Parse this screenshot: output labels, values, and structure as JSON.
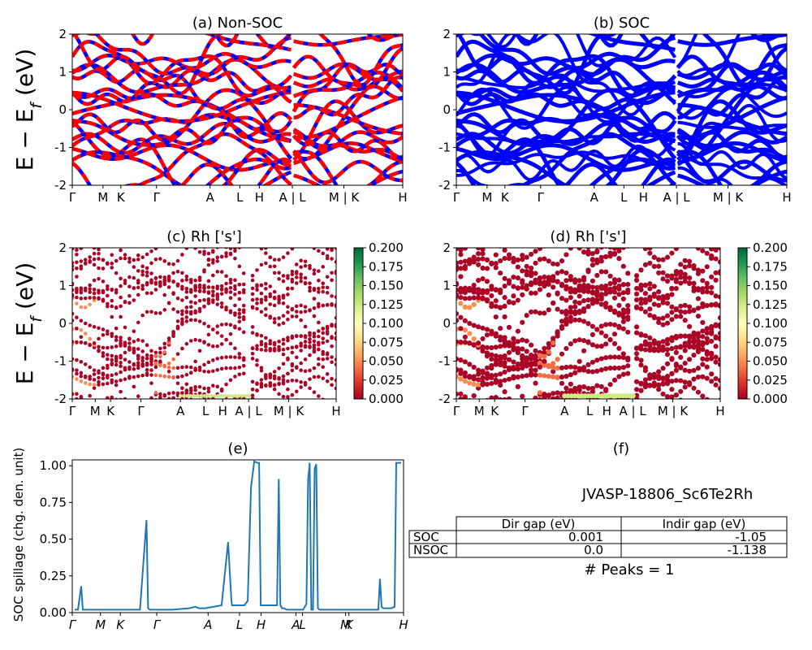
{
  "chart_data": [
    {
      "id": "a",
      "type": "line",
      "title": "(a) Non-SOC",
      "ylabel": "E − E_f (eV)",
      "ylim": [
        -2,
        2
      ],
      "yticks": [
        "-2",
        "-1",
        "0",
        "1",
        "2"
      ],
      "kpath": [
        "Γ",
        "M",
        "K",
        "Γ",
        "A",
        "L",
        "H",
        "A | L",
        "M | K",
        "H"
      ],
      "colors": {
        "primary": "#ff0000",
        "secondary": "#0000ff"
      }
    },
    {
      "id": "b",
      "type": "line",
      "title": "(b) SOC",
      "ylim": [
        -2,
        2
      ],
      "yticks": [
        "-2",
        "-1",
        "0",
        "1",
        "2"
      ],
      "kpath": [
        "Γ",
        "M",
        "K",
        "Γ",
        "A",
        "L",
        "H",
        "A | L",
        "M | K",
        "H"
      ],
      "colors": {
        "primary": "#0000ff"
      }
    },
    {
      "id": "c",
      "type": "scatter",
      "title": "(c)  Rh ['s']",
      "ylabel": "E − E_f (eV)",
      "ylim": [
        -2,
        2
      ],
      "yticks": [
        "-2",
        "-1",
        "0",
        "1",
        "2"
      ],
      "kpath": [
        "Γ",
        "M",
        "K",
        "Γ",
        "A",
        "L",
        "H",
        "A | L",
        "M | K",
        "H"
      ],
      "colorbar": {
        "ticks": [
          "0.000",
          "0.025",
          "0.050",
          "0.075",
          "0.100",
          "0.125",
          "0.150",
          "0.175",
          "0.200"
        ],
        "range": [
          0,
          0.2
        ],
        "cmap": "RdYlGn"
      }
    },
    {
      "id": "d",
      "type": "scatter",
      "title": "(d) Rh ['s']",
      "ylim": [
        -2,
        2
      ],
      "yticks": [
        "-2",
        "-1",
        "0",
        "1",
        "2"
      ],
      "kpath": [
        "Γ",
        "M",
        "K",
        "Γ",
        "A",
        "L",
        "H",
        "A | L",
        "M | K",
        "H"
      ],
      "colorbar": {
        "ticks": [
          "0.000",
          "0.025",
          "0.050",
          "0.075",
          "0.100",
          "0.125",
          "0.150",
          "0.175",
          "0.200"
        ],
        "range": [
          0,
          0.2
        ],
        "cmap": "RdYlGn"
      }
    },
    {
      "id": "e",
      "type": "line",
      "title": "(e)",
      "ylabel": "SOC spillage (chg. den. unit)",
      "ylim": [
        0,
        1.04
      ],
      "yticks": [
        "0.00",
        "0.25",
        "0.50",
        "0.75",
        "1.00"
      ],
      "kpath": [
        "Γ",
        "M",
        "K",
        "Γ",
        "A",
        "L",
        "H",
        "A",
        "L",
        "M",
        "K",
        "H"
      ],
      "color": "#1f77b4",
      "x": [
        0,
        0.01,
        0.02,
        0.025,
        0.035,
        0.05,
        0.1,
        0.15,
        0.2,
        0.22,
        0.225,
        0.23,
        0.24,
        0.3,
        0.35,
        0.37,
        0.38,
        0.385,
        0.39,
        0.4,
        0.45,
        0.47,
        0.48,
        0.482,
        0.485,
        0.49,
        0.5,
        0.52,
        0.53,
        0.54,
        0.55,
        0.56,
        0.565,
        0.57,
        0.58,
        0.6,
        0.62,
        0.625,
        0.63,
        0.635,
        0.64,
        0.65,
        0.7,
        0.71,
        0.715,
        0.72,
        0.725,
        0.73,
        0.735,
        0.74,
        0.745,
        0.75,
        0.76,
        0.8,
        0.85,
        0.9,
        0.93,
        0.935,
        0.94,
        0.945,
        0.95,
        0.97,
        0.98,
        0.985,
        0.99,
        1.0
      ],
      "values": [
        0.02,
        0.02,
        0.18,
        0.02,
        0.02,
        0.02,
        0.02,
        0.02,
        0.02,
        0.63,
        0.03,
        0.02,
        0.02,
        0.02,
        0.03,
        0.04,
        0.03,
        0.03,
        0.03,
        0.03,
        0.05,
        0.48,
        0.08,
        0.05,
        0.05,
        0.05,
        0.05,
        0.05,
        0.08,
        0.85,
        1.03,
        1.02,
        1.02,
        0.05,
        0.05,
        0.05,
        0.05,
        0.91,
        0.05,
        0.03,
        0.03,
        0.02,
        0.02,
        0.06,
        0.9,
        1.02,
        0.02,
        0.02,
        0.98,
        1.01,
        0.03,
        0.02,
        0.02,
        0.02,
        0.02,
        0.02,
        0.02,
        0.23,
        0.04,
        0.03,
        0.03,
        0.03,
        0.04,
        1.02,
        1.02,
        1.02
      ]
    }
  ],
  "panel_f": {
    "title": "(f)",
    "material": "JVASP-18806_Sc6Te2Rh",
    "headers": [
      "",
      "Dir gap (eV)",
      "Indir gap (eV)"
    ],
    "rows": [
      {
        "label": "SOC",
        "dir": "0.001",
        "indir": "-1.05"
      },
      {
        "label": "NSOC",
        "dir": "0.0",
        "indir": "-1.138"
      }
    ],
    "peaks": "# Peaks = 1"
  }
}
